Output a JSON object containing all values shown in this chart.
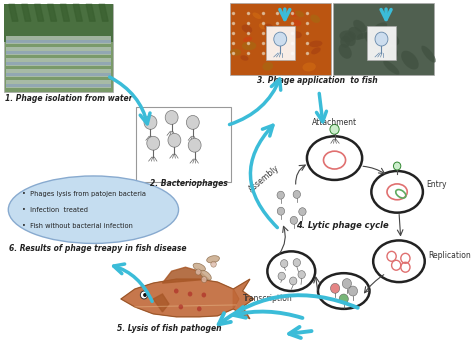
{
  "bg_color": "#ffffff",
  "arrow_color": "#3bbcd8",
  "label1": "1. Phage isolation from water",
  "label2": "2. Bacteriophages",
  "label3": "3. Phage application  to fish",
  "label4": "4. Lytic phage cycle",
  "label5": "5. Lysis of fish pathogen",
  "label6": "6. Results of phage treapy in fish disease",
  "attachment_label": "Attachment",
  "entry_label": "Entry",
  "assembly_label": "Assembly",
  "transcription_label": "Transcription",
  "replication_label": "Replication",
  "bullet1": "Phages lysis from patojen bacteria",
  "bullet2": "Infection  treated",
  "bullet3": "Fish without bacterial infection",
  "pink_color": "#e07070",
  "green_color": "#60aa60",
  "grey_color": "#999999",
  "cell_edge": "#222222",
  "label_fontsize": 6.5,
  "small_fontsize": 5.5,
  "cycle_cell_lw": 1.8,
  "pond_colors": [
    "#5a7a50",
    "#8aaa78",
    "#6888aa"
  ],
  "photo1_main": "#6a8a5a",
  "photo2_main": "#bb6622",
  "photo3_main": "#607060"
}
